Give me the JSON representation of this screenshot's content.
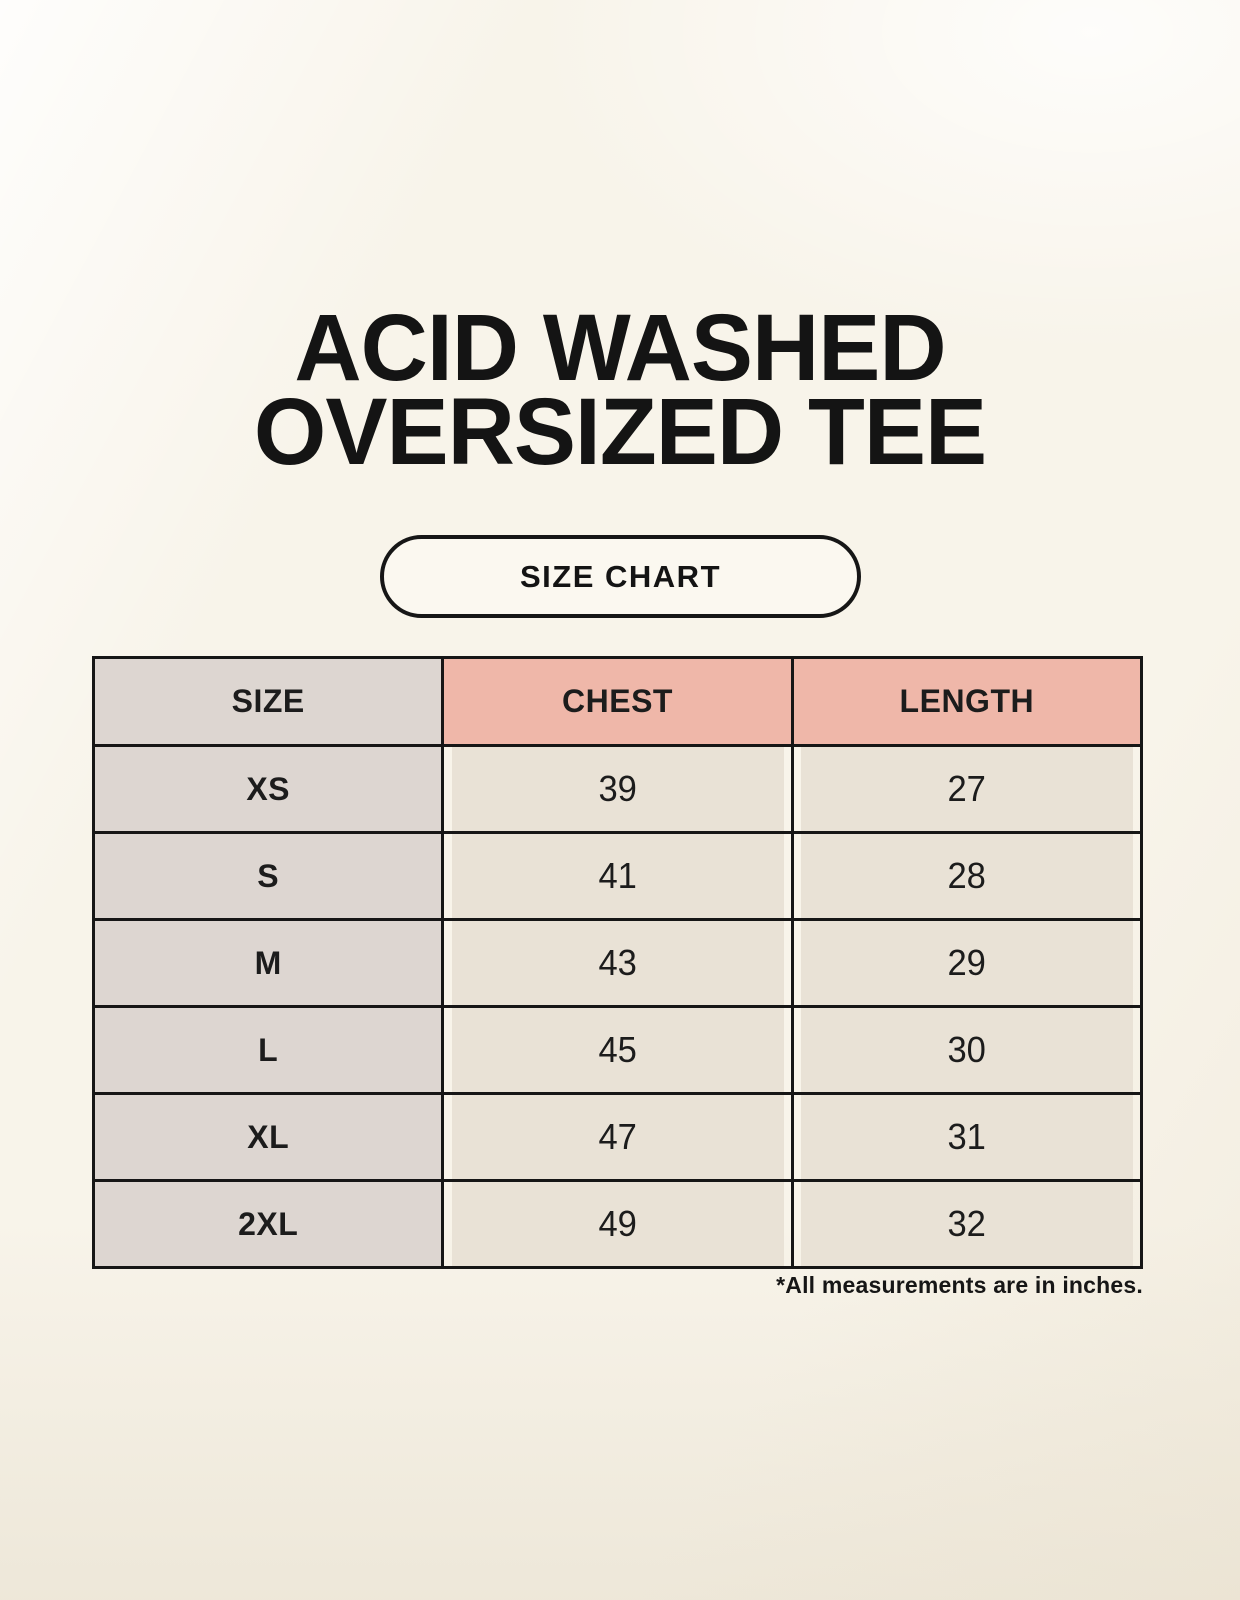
{
  "header": {
    "title_line1": "ACID WASHED",
    "title_line2": "OVERSIZED TEE",
    "size_chart_button": "SIZE CHART"
  },
  "chart_data": {
    "type": "table",
    "title": "ACID WASHED OVERSIZED TEE",
    "columns": [
      "SIZE",
      "CHEST",
      "LENGTH"
    ],
    "rows": [
      [
        "XS",
        "39",
        "27"
      ],
      [
        "S",
        "41",
        "28"
      ],
      [
        "M",
        "43",
        "29"
      ],
      [
        "L",
        "45",
        "30"
      ],
      [
        "XL",
        "47",
        "31"
      ],
      [
        "2XL",
        "49",
        "32"
      ]
    ],
    "units_note": "*All measurements are in inches."
  },
  "colors": {
    "background": "#f8f4ea",
    "size_column_bg": "#ddd6d1",
    "measure_header_bg": "#efb7a9",
    "value_cell_bg": "#e9e2d6",
    "border": "#161616",
    "text": "#141414"
  }
}
